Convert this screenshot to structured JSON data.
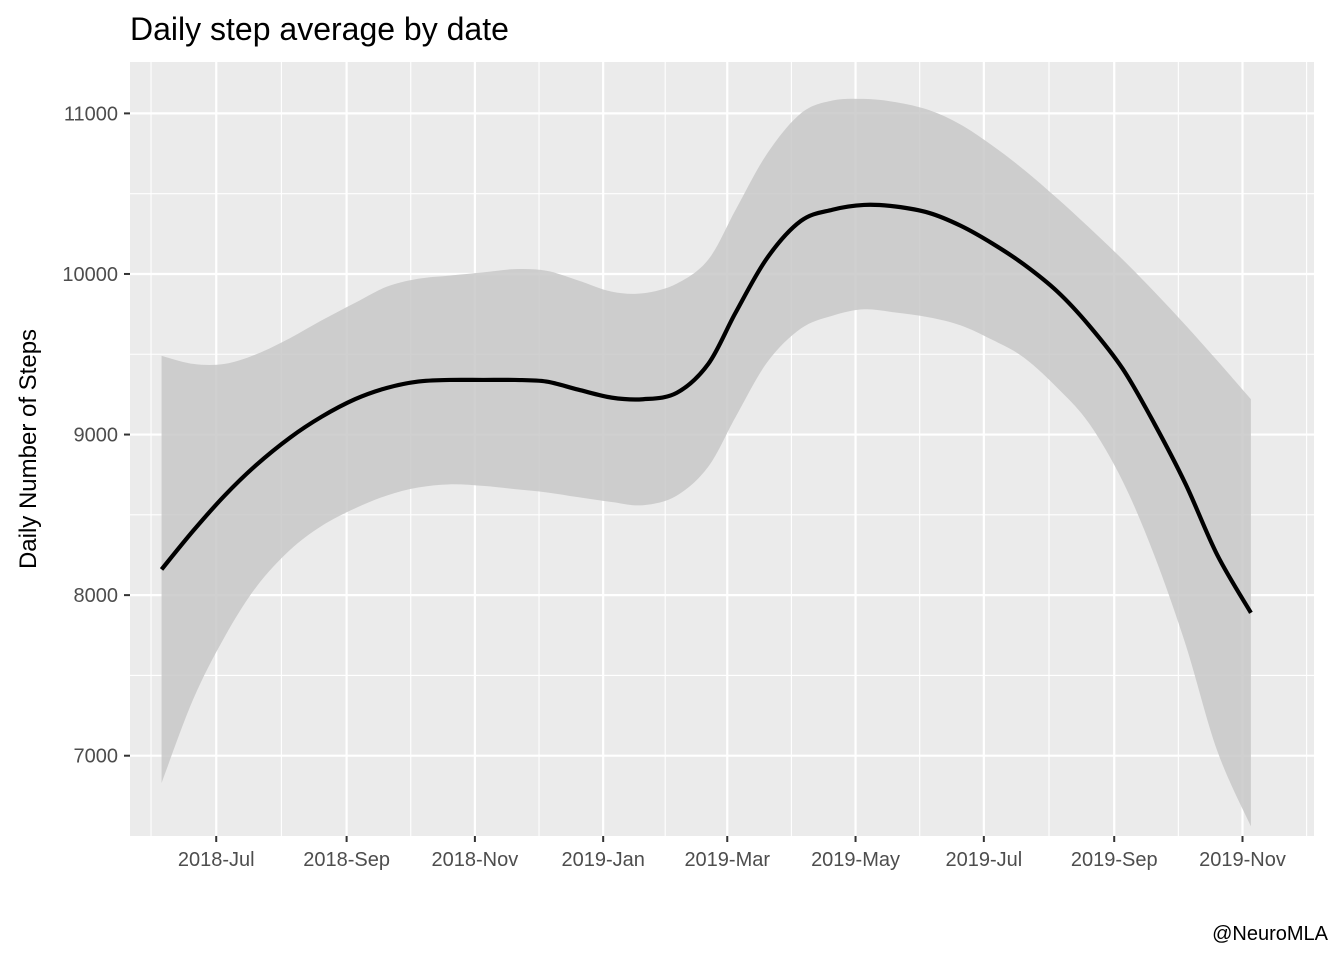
{
  "chart_data": {
    "type": "line",
    "title": "Daily step average by date",
    "xlabel": "",
    "ylabel": "Daily Number of Steps",
    "caption": "@NeuroMLA",
    "ylim": [
      6500,
      11320
    ],
    "xlim": [
      "2018-05-21",
      "2019-12-05"
    ],
    "x_ticks": [
      {
        "date": "2018-07-01",
        "label": "2018-Jul"
      },
      {
        "date": "2018-09-01",
        "label": "2018-Sep"
      },
      {
        "date": "2018-11-01",
        "label": "2018-Nov"
      },
      {
        "date": "2019-01-01",
        "label": "2019-Jan"
      },
      {
        "date": "2019-03-01",
        "label": "2019-Mar"
      },
      {
        "date": "2019-05-01",
        "label": "2019-May"
      },
      {
        "date": "2019-07-01",
        "label": "2019-Jul"
      },
      {
        "date": "2019-09-01",
        "label": "2019-Sep"
      },
      {
        "date": "2019-11-01",
        "label": "2019-Nov"
      }
    ],
    "y_ticks": [
      7000,
      8000,
      9000,
      10000,
      11000
    ],
    "grid": true,
    "background": "#ebebeb",
    "line_color": "#000000",
    "band_color": "#c8c8c8",
    "series": [
      {
        "points": [
          {
            "x": "2018-06-05",
            "y": 8160,
            "lo": 6830,
            "hi": 9490
          },
          {
            "x": "2018-06-20",
            "y": 8400,
            "lo": 7350,
            "hi": 9440
          },
          {
            "x": "2018-07-05",
            "y": 8620,
            "lo": 7740,
            "hi": 9440
          },
          {
            "x": "2018-07-20",
            "y": 8810,
            "lo": 8050,
            "hi": 9500
          },
          {
            "x": "2018-08-05",
            "y": 8980,
            "lo": 8280,
            "hi": 9600
          },
          {
            "x": "2018-08-20",
            "y": 9110,
            "lo": 8430,
            "hi": 9710
          },
          {
            "x": "2018-09-05",
            "y": 9220,
            "lo": 8540,
            "hi": 9820
          },
          {
            "x": "2018-09-20",
            "y": 9290,
            "lo": 8620,
            "hi": 9920
          },
          {
            "x": "2018-10-05",
            "y": 9330,
            "lo": 8670,
            "hi": 9970
          },
          {
            "x": "2018-10-20",
            "y": 9340,
            "lo": 8690,
            "hi": 9990
          },
          {
            "x": "2018-11-05",
            "y": 9340,
            "lo": 8680,
            "hi": 10010
          },
          {
            "x": "2018-11-20",
            "y": 9340,
            "lo": 8660,
            "hi": 10030
          },
          {
            "x": "2018-12-05",
            "y": 9330,
            "lo": 8640,
            "hi": 10020
          },
          {
            "x": "2018-12-20",
            "y": 9280,
            "lo": 8610,
            "hi": 9960
          },
          {
            "x": "2019-01-05",
            "y": 9230,
            "lo": 8580,
            "hi": 9890
          },
          {
            "x": "2019-01-20",
            "y": 9220,
            "lo": 8560,
            "hi": 9880
          },
          {
            "x": "2019-02-05",
            "y": 9260,
            "lo": 8620,
            "hi": 9940
          },
          {
            "x": "2019-02-20",
            "y": 9440,
            "lo": 8800,
            "hi": 10090
          },
          {
            "x": "2019-03-05",
            "y": 9760,
            "lo": 9110,
            "hi": 10400
          },
          {
            "x": "2019-03-20",
            "y": 10100,
            "lo": 9450,
            "hi": 10750
          },
          {
            "x": "2019-04-05",
            "y": 10330,
            "lo": 9660,
            "hi": 11000
          },
          {
            "x": "2019-04-20",
            "y": 10400,
            "lo": 9740,
            "hi": 11080
          },
          {
            "x": "2019-05-05",
            "y": 10430,
            "lo": 9780,
            "hi": 11090
          },
          {
            "x": "2019-05-20",
            "y": 10420,
            "lo": 9760,
            "hi": 11070
          },
          {
            "x": "2019-06-05",
            "y": 10380,
            "lo": 9730,
            "hi": 11020
          },
          {
            "x": "2019-06-20",
            "y": 10300,
            "lo": 9680,
            "hi": 10930
          },
          {
            "x": "2019-07-05",
            "y": 10190,
            "lo": 9590,
            "hi": 10800
          },
          {
            "x": "2019-07-20",
            "y": 10060,
            "lo": 9480,
            "hi": 10650
          },
          {
            "x": "2019-08-05",
            "y": 9890,
            "lo": 9290,
            "hi": 10470
          },
          {
            "x": "2019-08-20",
            "y": 9680,
            "lo": 9070,
            "hi": 10290
          },
          {
            "x": "2019-09-05",
            "y": 9410,
            "lo": 8710,
            "hi": 10090
          },
          {
            "x": "2019-09-20",
            "y": 9070,
            "lo": 8250,
            "hi": 9890
          },
          {
            "x": "2019-10-05",
            "y": 8690,
            "lo": 7690,
            "hi": 9680
          },
          {
            "x": "2019-10-20",
            "y": 8250,
            "lo": 7030,
            "hi": 9460
          },
          {
            "x": "2019-11-05",
            "y": 7890,
            "lo": 6560,
            "hi": 9220
          }
        ]
      }
    ]
  }
}
